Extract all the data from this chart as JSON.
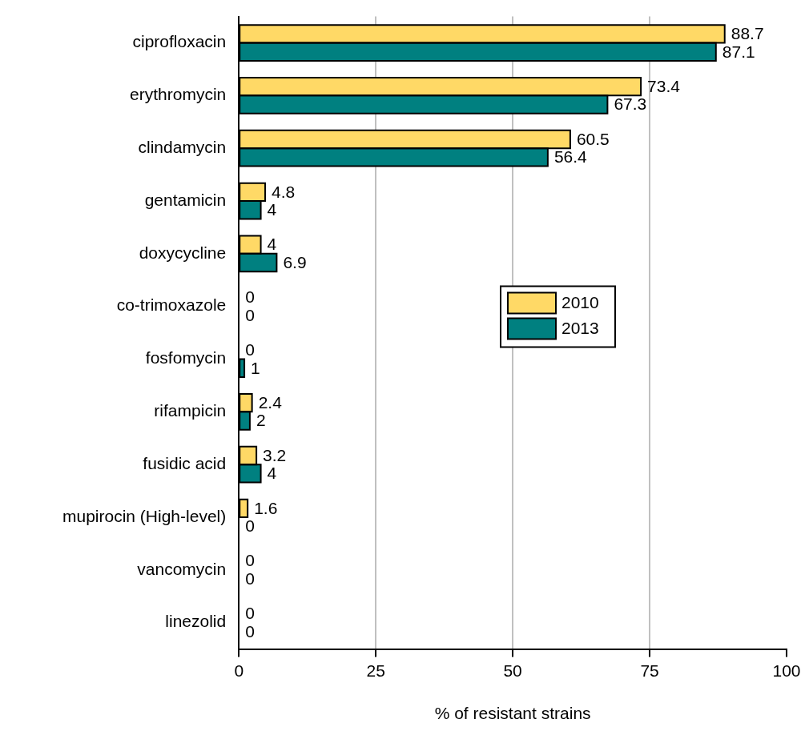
{
  "chart_data": {
    "type": "bar",
    "orientation": "horizontal",
    "xlabel": "% of resistant strains",
    "categories": [
      "ciprofloxacin",
      "erythromycin",
      "clindamycin",
      "gentamicin",
      "doxycycline",
      "co-trimoxazole",
      "fosfomycin",
      "rifampicin",
      "fusidic acid",
      "mupirocin (High-level)",
      "vancomycin",
      "linezolid"
    ],
    "series": [
      {
        "name": "2010",
        "color": "#ffd966",
        "values": [
          88.7,
          73.4,
          60.5,
          4.8,
          4,
          0,
          0,
          2.4,
          3.2,
          1.6,
          0,
          0
        ]
      },
      {
        "name": "2013",
        "color": "#008080",
        "values": [
          87.1,
          67.3,
          56.4,
          4,
          6.9,
          0,
          1,
          2,
          4,
          0,
          0,
          0
        ]
      }
    ],
    "xlim": [
      0,
      100
    ],
    "xticks": [
      0,
      25,
      50,
      75,
      100
    ],
    "grid": "x",
    "legend": "right",
    "data_labels": true
  }
}
